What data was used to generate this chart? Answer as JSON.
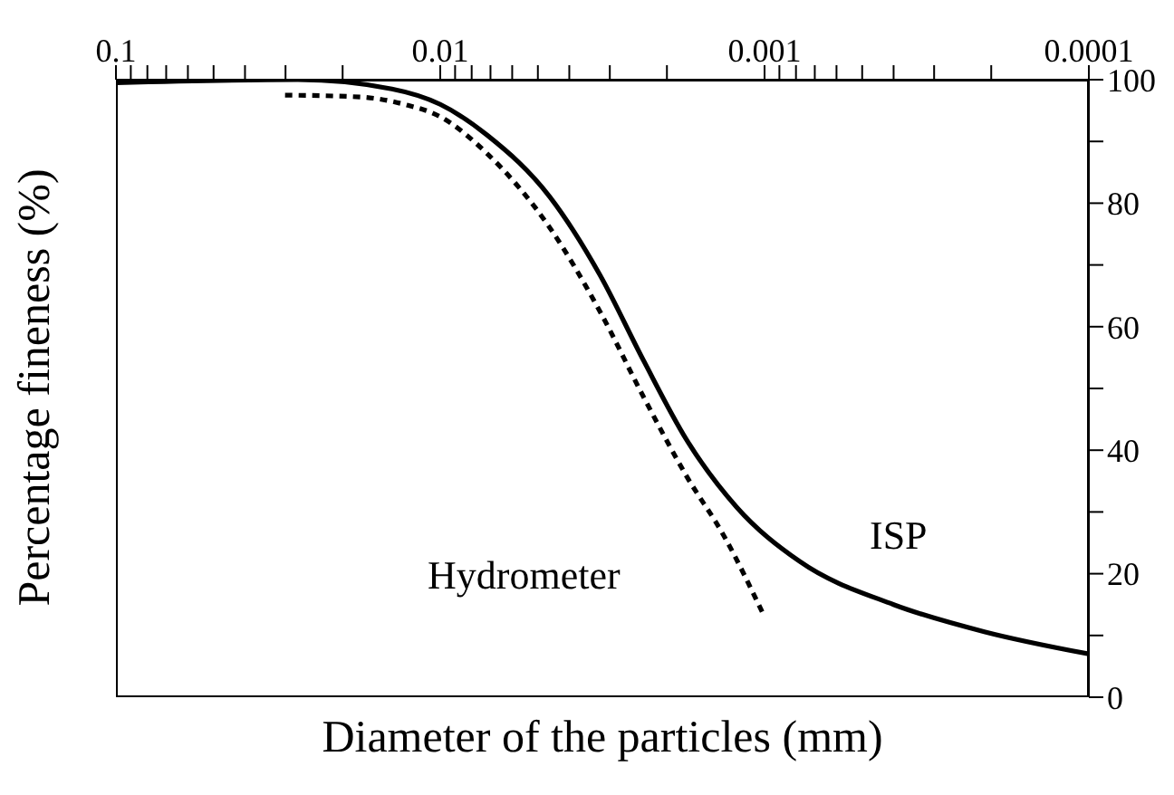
{
  "chart_data": {
    "type": "line",
    "xlabel": "Diameter of the particles (mm)",
    "ylabel": "Percentage fineness (%)",
    "log": "x",
    "xlim": [
      0.1,
      0.0001
    ],
    "xticks": [
      0.1,
      {
        "value": 0.09,
        "label": null
      },
      {
        "value": 0.08,
        "label": null
      },
      {
        "value": 0.07,
        "label": null
      },
      {
        "value": 0.06,
        "label": null
      },
      {
        "value": 0.05,
        "label": null
      },
      {
        "value": 0.04,
        "label": null
      },
      {
        "value": 0.03,
        "label": null
      },
      {
        "value": 0.02,
        "label": null
      },
      0.01,
      {
        "value": 0.009,
        "label": null
      },
      {
        "value": 0.008,
        "label": null
      },
      {
        "value": 0.007,
        "label": null
      },
      {
        "value": 0.006,
        "label": null
      },
      {
        "value": 0.005,
        "label": null
      },
      {
        "value": 0.004,
        "label": null
      },
      {
        "value": 0.003,
        "label": null
      },
      {
        "value": 0.002,
        "label": null
      },
      0.001,
      {
        "value": 0.0009,
        "label": null
      },
      {
        "value": 0.0008,
        "label": null
      },
      {
        "value": 0.0007,
        "label": null
      },
      {
        "value": 0.0006,
        "label": null
      },
      {
        "value": 0.0005,
        "label": null
      },
      {
        "value": 0.0004,
        "label": null
      },
      {
        "value": 0.0003,
        "label": null
      },
      {
        "value": 0.0002,
        "label": null
      },
      0.0001
    ],
    "ylim": [
      0,
      100
    ],
    "yticks": [
      0,
      {
        "value": 10,
        "label": null
      },
      20,
      {
        "value": 30,
        "label": null
      },
      40,
      {
        "value": 50,
        "label": null
      },
      60,
      {
        "value": 70,
        "label": null
      },
      80,
      {
        "value": 90,
        "label": null
      },
      100
    ],
    "marker": "none",
    "series": [
      {
        "color": "#000000",
        "line_style": "solid",
        "x": [
          0.1,
          0.0275,
          0.0141,
          0.01,
          0.00716,
          0.00459,
          0.00322,
          0.00236,
          0.00174,
          0.00122,
          0.00078,
          0.0004,
          0.00021,
          0.0001
        ],
        "values": [
          99.5,
          100,
          98.5,
          96,
          91,
          81,
          68.4,
          54.5,
          41.7,
          30.8,
          22,
          15,
          10.6,
          7
        ]
      },
      {
        "color": "#000000",
        "line_style": "dashed",
        "x": [
          0.0301,
          0.0177,
          0.0129,
          0.01,
          0.00716,
          0.00459,
          0.00322,
          0.00236,
          0.00174,
          0.00133,
          0.001
        ],
        "values": [
          97.5,
          97.2,
          96,
          94,
          88,
          76,
          62.5,
          48.6,
          35.8,
          26,
          13
        ]
      }
    ],
    "annotations": [
      "Hydrometer",
      "ISP"
    ]
  }
}
